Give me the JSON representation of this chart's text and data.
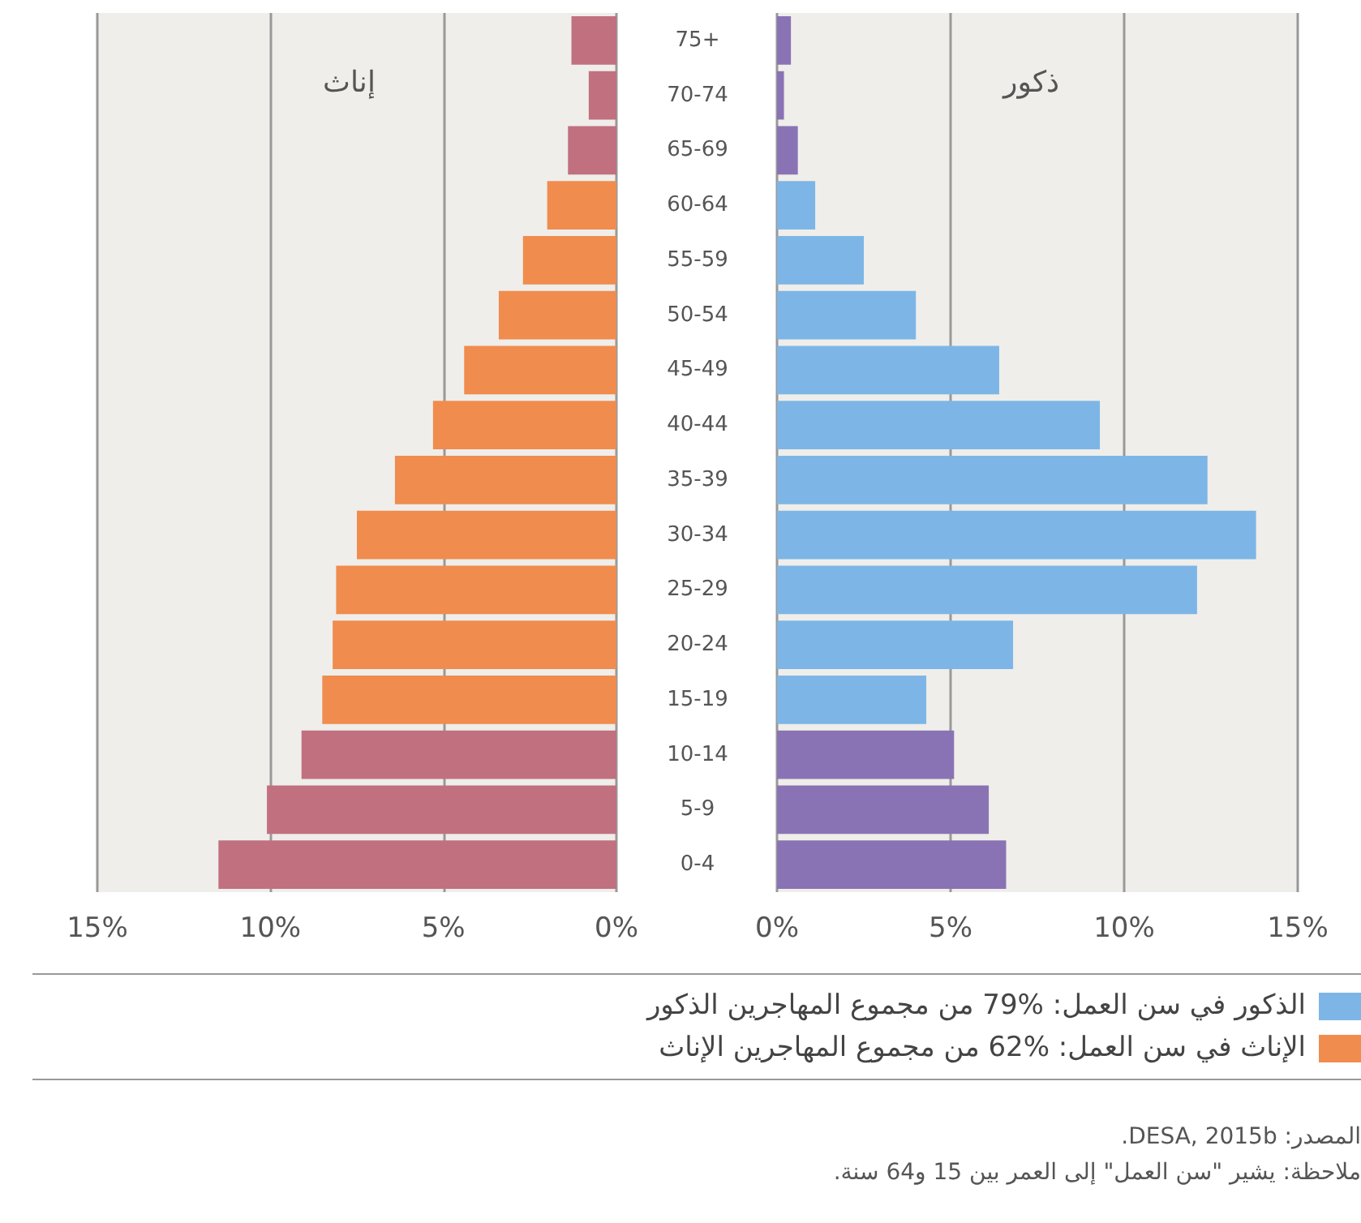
{
  "chart_data": [
    {
      "type": "bar",
      "orientation": "horizontal",
      "categories": [
        "75+",
        "70-74",
        "65-69",
        "60-64",
        "55-59",
        "50-54",
        "45-49",
        "40-44",
        "35-39",
        "30-34",
        "25-29",
        "20-24",
        "15-19",
        "10-14",
        "5-9",
        "0-4"
      ],
      "series": [
        {
          "name": "الإناث في سن العمل:   %62 من مجموع المهاجرين الإناث",
          "color": "#f08c4e",
          "values": [
            null,
            null,
            null,
            2.0,
            2.7,
            3.4,
            4.4,
            5.3,
            6.4,
            7.5,
            8.1,
            8.2,
            8.5,
            null,
            null,
            null
          ]
        },
        {
          "color": "#c1707f",
          "values": [
            1.3,
            0.8,
            1.4,
            null,
            null,
            null,
            null,
            null,
            null,
            null,
            null,
            null,
            null,
            9.1,
            10.1,
            11.5
          ]
        }
      ],
      "xlim": [
        15,
        0
      ],
      "xticks": [
        {
          "value": 15,
          "label": "15%"
        },
        {
          "value": 10,
          "label": "10%"
        },
        {
          "value": 5,
          "label": "5%"
        },
        {
          "value": 0,
          "label": "0%"
        }
      ],
      "grid": "x",
      "legend": "bottom",
      "annotations": [
        "إناث"
      ]
    },
    {
      "type": "bar",
      "orientation": "horizontal",
      "categories": [
        null,
        null,
        null,
        null,
        null,
        null,
        null,
        null,
        null,
        null,
        null,
        null,
        null,
        null,
        null,
        null
      ],
      "series": [
        {
          "name": "الذكور في سن العمل:  %79 من مجموع المهاجرين الذكور",
          "color": "#7db6e6",
          "values": [
            null,
            null,
            null,
            1.1,
            2.5,
            4.0,
            6.4,
            9.3,
            12.4,
            13.8,
            12.1,
            6.8,
            4.3,
            null,
            null,
            null
          ]
        },
        {
          "color": "#8a73b4",
          "values": [
            0.4,
            0.2,
            0.6,
            null,
            null,
            null,
            null,
            null,
            null,
            null,
            null,
            null,
            null,
            5.1,
            6.1,
            6.6
          ]
        }
      ],
      "xlim": [
        0,
        15
      ],
      "xticks": [
        {
          "value": 0,
          "label": "0%"
        },
        {
          "value": 5,
          "label": "5%"
        },
        {
          "value": 10,
          "label": "10%"
        },
        {
          "value": 15,
          "label": "15%"
        }
      ],
      "grid": "x",
      "legend": "bottom",
      "tick_labels": "x",
      "annotations": [
        "ذكور",
        "المصدر: DESA, 2015b.",
        "ملاحظة: يشير \"سن العمل\" إلى العمر بين 15 و64 سنة."
      ]
    }
  ]
}
